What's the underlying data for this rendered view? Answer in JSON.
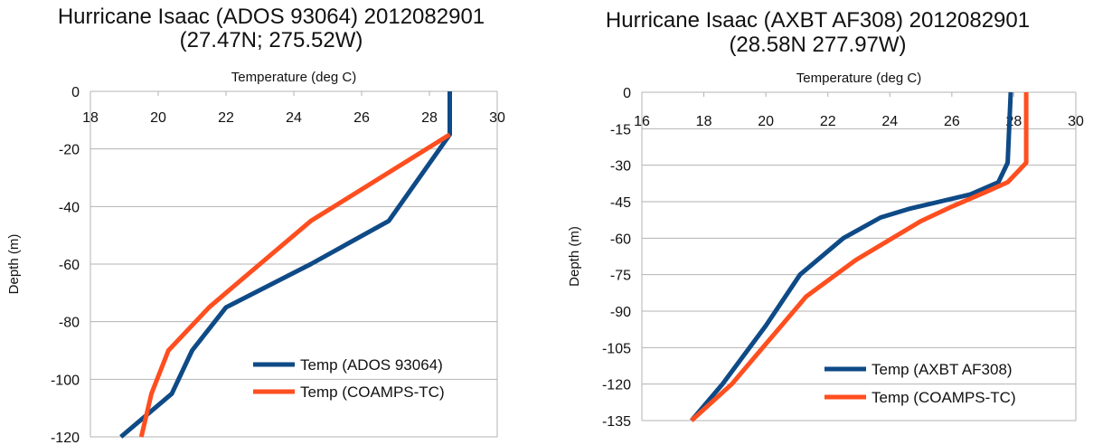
{
  "chart_data": [
    {
      "type": "line",
      "title": "Hurricane Isaac (ADOS 93064) 2012082901",
      "subtitle": "(27.47N; 275.52W)",
      "xlabel": "Temperature (deg C)",
      "ylabel": "Depth (m)",
      "xlim": [
        18,
        30
      ],
      "ylim": [
        -120,
        0
      ],
      "xticks": [
        "18",
        "20",
        "22",
        "24",
        "26",
        "28",
        "30"
      ],
      "yticks": [
        "0",
        "-20",
        "-40",
        "-60",
        "-80",
        "-100",
        "-120"
      ],
      "grid": true,
      "legend_position": "bottom-right",
      "series": [
        {
          "name": "Temp (ADOS 93064)",
          "color": "#0e4a86",
          "points": [
            [
              28.6,
              0
            ],
            [
              28.6,
              -15
            ],
            [
              26.8,
              -45
            ],
            [
              24.5,
              -60
            ],
            [
              22.0,
              -75
            ],
            [
              21.0,
              -90
            ],
            [
              20.4,
              -105
            ],
            [
              18.9,
              -120
            ]
          ]
        },
        {
          "name": "Temp (COAMPS-TC)",
          "color": "#ff4e1f",
          "points": [
            [
              28.6,
              -15
            ],
            [
              24.5,
              -45
            ],
            [
              22.0,
              -70
            ],
            [
              21.5,
              -75
            ],
            [
              20.3,
              -90
            ],
            [
              19.8,
              -105
            ],
            [
              19.5,
              -120
            ]
          ]
        }
      ]
    },
    {
      "type": "line",
      "title": "Hurricane Isaac (AXBT AF308) 2012082901",
      "subtitle": "(28.58N 277.97W)",
      "xlabel": "Temperature (deg C)",
      "ylabel": "Depth (m)",
      "xlim": [
        16,
        30
      ],
      "ylim": [
        -135,
        0
      ],
      "xticks": [
        "16",
        "18",
        "20",
        "22",
        "24",
        "26",
        "28",
        "30"
      ],
      "yticks": [
        "0",
        "-15",
        "-30",
        "-45",
        "-60",
        "-75",
        "-90",
        "-105",
        "-120",
        "-135"
      ],
      "grid": true,
      "legend_position": "bottom-right",
      "series": [
        {
          "name": "Temp (AXBT AF308)",
          "color": "#0e4a86",
          "points": [
            [
              27.9,
              0
            ],
            [
              27.8,
              -29
            ],
            [
              27.5,
              -37
            ],
            [
              26.6,
              -42
            ],
            [
              25.6,
              -45
            ],
            [
              24.6,
              -48
            ],
            [
              23.7,
              -51.5
            ],
            [
              22.5,
              -60
            ],
            [
              21.1,
              -75
            ],
            [
              20.0,
              -96
            ],
            [
              18.6,
              -120
            ],
            [
              17.6,
              -135
            ]
          ]
        },
        {
          "name": "Temp (COAMPS-TC)",
          "color": "#ff4e1f",
          "points": [
            [
              28.4,
              0
            ],
            [
              28.4,
              -29
            ],
            [
              27.8,
              -37
            ],
            [
              27.1,
              -41
            ],
            [
              26.0,
              -47
            ],
            [
              25.0,
              -53
            ],
            [
              22.9,
              -69
            ],
            [
              21.3,
              -84
            ],
            [
              20.3,
              -99
            ],
            [
              18.9,
              -120
            ],
            [
              17.6,
              -135
            ]
          ]
        }
      ]
    }
  ]
}
